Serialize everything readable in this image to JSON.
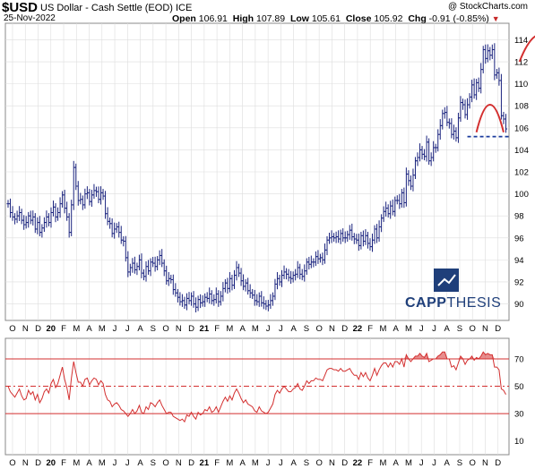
{
  "header": {
    "symbol": "$USD",
    "name": "US Dollar - Cash Settle (EOD)",
    "exchange": "ICE",
    "date": "25-Nov-2022",
    "copyright": "@ StockCharts.com",
    "ohlc": {
      "open_label": "Open",
      "open": "106.91",
      "high_label": "High",
      "high": "107.89",
      "low_label": "Low",
      "low": "105.61",
      "close_label": "Close",
      "close": "105.92",
      "chg_label": "Chg",
      "chg": "-0.91 (-0.85%)"
    }
  },
  "logo": {
    "part1": "CAPP",
    "part2": "THESIS"
  },
  "colors": {
    "price": "#1a237e",
    "pattern": "#d32f2f",
    "neckline": "#1a3a9c",
    "rsi": "#d32f2f",
    "grid": "#dddddd"
  },
  "chart_data": [
    {
      "type": "ohlc",
      "ylim": [
        88.5,
        115.5
      ],
      "y_ticks": [
        90,
        92,
        94,
        96,
        98,
        100,
        102,
        104,
        106,
        108,
        110,
        112,
        114
      ],
      "x_ticks": [
        "O",
        "N",
        "D",
        "20",
        "F",
        "M",
        "A",
        "M",
        "J",
        "J",
        "A",
        "S",
        "O",
        "N",
        "D",
        "21",
        "F",
        "M",
        "A",
        "M",
        "J",
        "J",
        "A",
        "S",
        "O",
        "N",
        "D",
        "22",
        "F",
        "M",
        "A",
        "M",
        "J",
        "J",
        "A",
        "S",
        "O",
        "N",
        "D"
      ],
      "closes": [
        99.1,
        98.3,
        97.9,
        97.7,
        98.0,
        98.3,
        97.6,
        97.2,
        97.4,
        98.0,
        97.6,
        97.9,
        96.8,
        97.4,
        96.5,
        96.9,
        97.4,
        97.9,
        97.4,
        98.3,
        98.8,
        97.9,
        98.3,
        99.1,
        99.9,
        98.7,
        97.9,
        96.5,
        99.0,
        102.4,
        100.7,
        99.4,
        99.5,
        99.0,
        100.0,
        100.1,
        99.3,
        99.9,
        100.3,
        100.2,
        99.5,
        100.1,
        99.8,
        98.2,
        97.5,
        97.3,
        96.4,
        96.8,
        97.0,
        96.5,
        95.8,
        95.7,
        94.2,
        92.9,
        93.3,
        93.7,
        93.1,
        93.4,
        94.0,
        92.8,
        92.5,
        93.4,
        93.0,
        93.8,
        93.7,
        93.4,
        94.0,
        94.4,
        93.7,
        93.0,
        92.1,
        92.3,
        92.2,
        91.3,
        91.0,
        90.6,
        90.2,
        90.3,
        89.9,
        90.5,
        90.3,
        90.7,
        90.0,
        89.7,
        90.4,
        90.1,
        90.2,
        90.6,
        90.5,
        90.9,
        90.3,
        90.4,
        90.9,
        90.2,
        90.7,
        91.4,
        91.9,
        91.4,
        92.3,
        91.7,
        92.6,
        93.3,
        92.8,
        92.1,
        91.6,
        91.9,
        91.2,
        91.0,
        90.8,
        90.3,
        90.2,
        90.7,
        90.1,
        90.0,
        89.8,
        89.9,
        90.3,
        90.7,
        91.8,
        92.3,
        92.0,
        92.6,
        92.9,
        92.7,
        92.4,
        92.3,
        92.6,
        92.7,
        93.3,
        92.7,
        92.5,
        93.0,
        93.8,
        93.6,
        93.8,
        93.8,
        94.3,
        94.1,
        94.2,
        94.0,
        94.9,
        95.8,
        96.0,
        96.1,
        96.0,
        96.1,
        95.9,
        96.4,
        96.0,
        96.0,
        96.3,
        96.7,
        96.1,
        95.9,
        95.8,
        95.3,
        96.2,
        95.7,
        96.2,
        95.5,
        95.2,
        95.8,
        96.8,
        96.0,
        97.0,
        97.8,
        98.4,
        98.7,
        98.2,
        98.9,
        98.4,
        99.4,
        99.4,
        99.1,
        100.1,
        99.2,
        101.8,
        101.2,
        100.7,
        101.7,
        103.0,
        103.3,
        104.0,
        103.6,
        103.4,
        104.7,
        103.0,
        103.3,
        104.2,
        104.2,
        105.4,
        106.2,
        107.3,
        107.4,
        106.5,
        106.4,
        105.4,
        105.7,
        105.1,
        106.9,
        108.3,
        108.1,
        107.2,
        108.1,
        108.8,
        109.9,
        109.0,
        110.1,
        109.6,
        111.3,
        113.1,
        112.3,
        113.0,
        112.6,
        113.1,
        110.8,
        111.0,
        110.3,
        107.1,
        106.8,
        105.9
      ]
    },
    {
      "type": "line",
      "name": "RSI",
      "ylim": [
        0,
        85
      ],
      "y_ticks": [
        10,
        30,
        50,
        70
      ],
      "levels": [
        70,
        50,
        30
      ],
      "values": [
        50,
        46,
        44,
        42,
        45,
        48,
        43,
        40,
        41,
        47,
        44,
        46,
        40,
        44,
        38,
        41,
        46,
        48,
        45,
        52,
        55,
        49,
        52,
        58,
        64,
        55,
        49,
        40,
        56,
        68,
        60,
        53,
        53,
        50,
        55,
        56,
        51,
        54,
        56,
        55,
        51,
        54,
        52,
        44,
        40,
        39,
        35,
        37,
        38,
        36,
        33,
        32,
        30,
        28,
        30,
        33,
        30,
        32,
        36,
        31,
        30,
        35,
        33,
        38,
        37,
        35,
        38,
        40,
        36,
        33,
        30,
        31,
        31,
        28,
        27,
        26,
        25,
        26,
        24,
        29,
        28,
        31,
        28,
        26,
        31,
        29,
        30,
        33,
        32,
        35,
        31,
        32,
        35,
        31,
        35,
        39,
        42,
        39,
        43,
        40,
        45,
        48,
        45,
        41,
        38,
        40,
        37,
        36,
        35,
        32,
        31,
        35,
        32,
        31,
        30,
        31,
        34,
        37,
        44,
        47,
        45,
        48,
        50,
        48,
        46,
        46,
        48,
        49,
        52,
        48,
        47,
        50,
        54,
        52,
        54,
        54,
        56,
        55,
        55,
        54,
        58,
        62,
        63,
        63,
        62,
        62,
        61,
        63,
        61,
        61,
        62,
        63,
        60,
        58,
        58,
        55,
        60,
        57,
        60,
        56,
        54,
        58,
        63,
        58,
        62,
        65,
        67,
        67,
        64,
        67,
        64,
        68,
        68,
        66,
        70,
        64,
        73,
        70,
        68,
        70,
        72,
        72,
        74,
        72,
        71,
        74,
        68,
        69,
        70,
        70,
        72,
        73,
        75,
        75,
        70,
        70,
        64,
        65,
        62,
        67,
        72,
        70,
        66,
        69,
        70,
        72,
        69,
        71,
        70,
        72,
        75,
        73,
        74,
        73,
        73,
        64,
        64,
        62,
        48,
        47,
        44
      ]
    }
  ]
}
